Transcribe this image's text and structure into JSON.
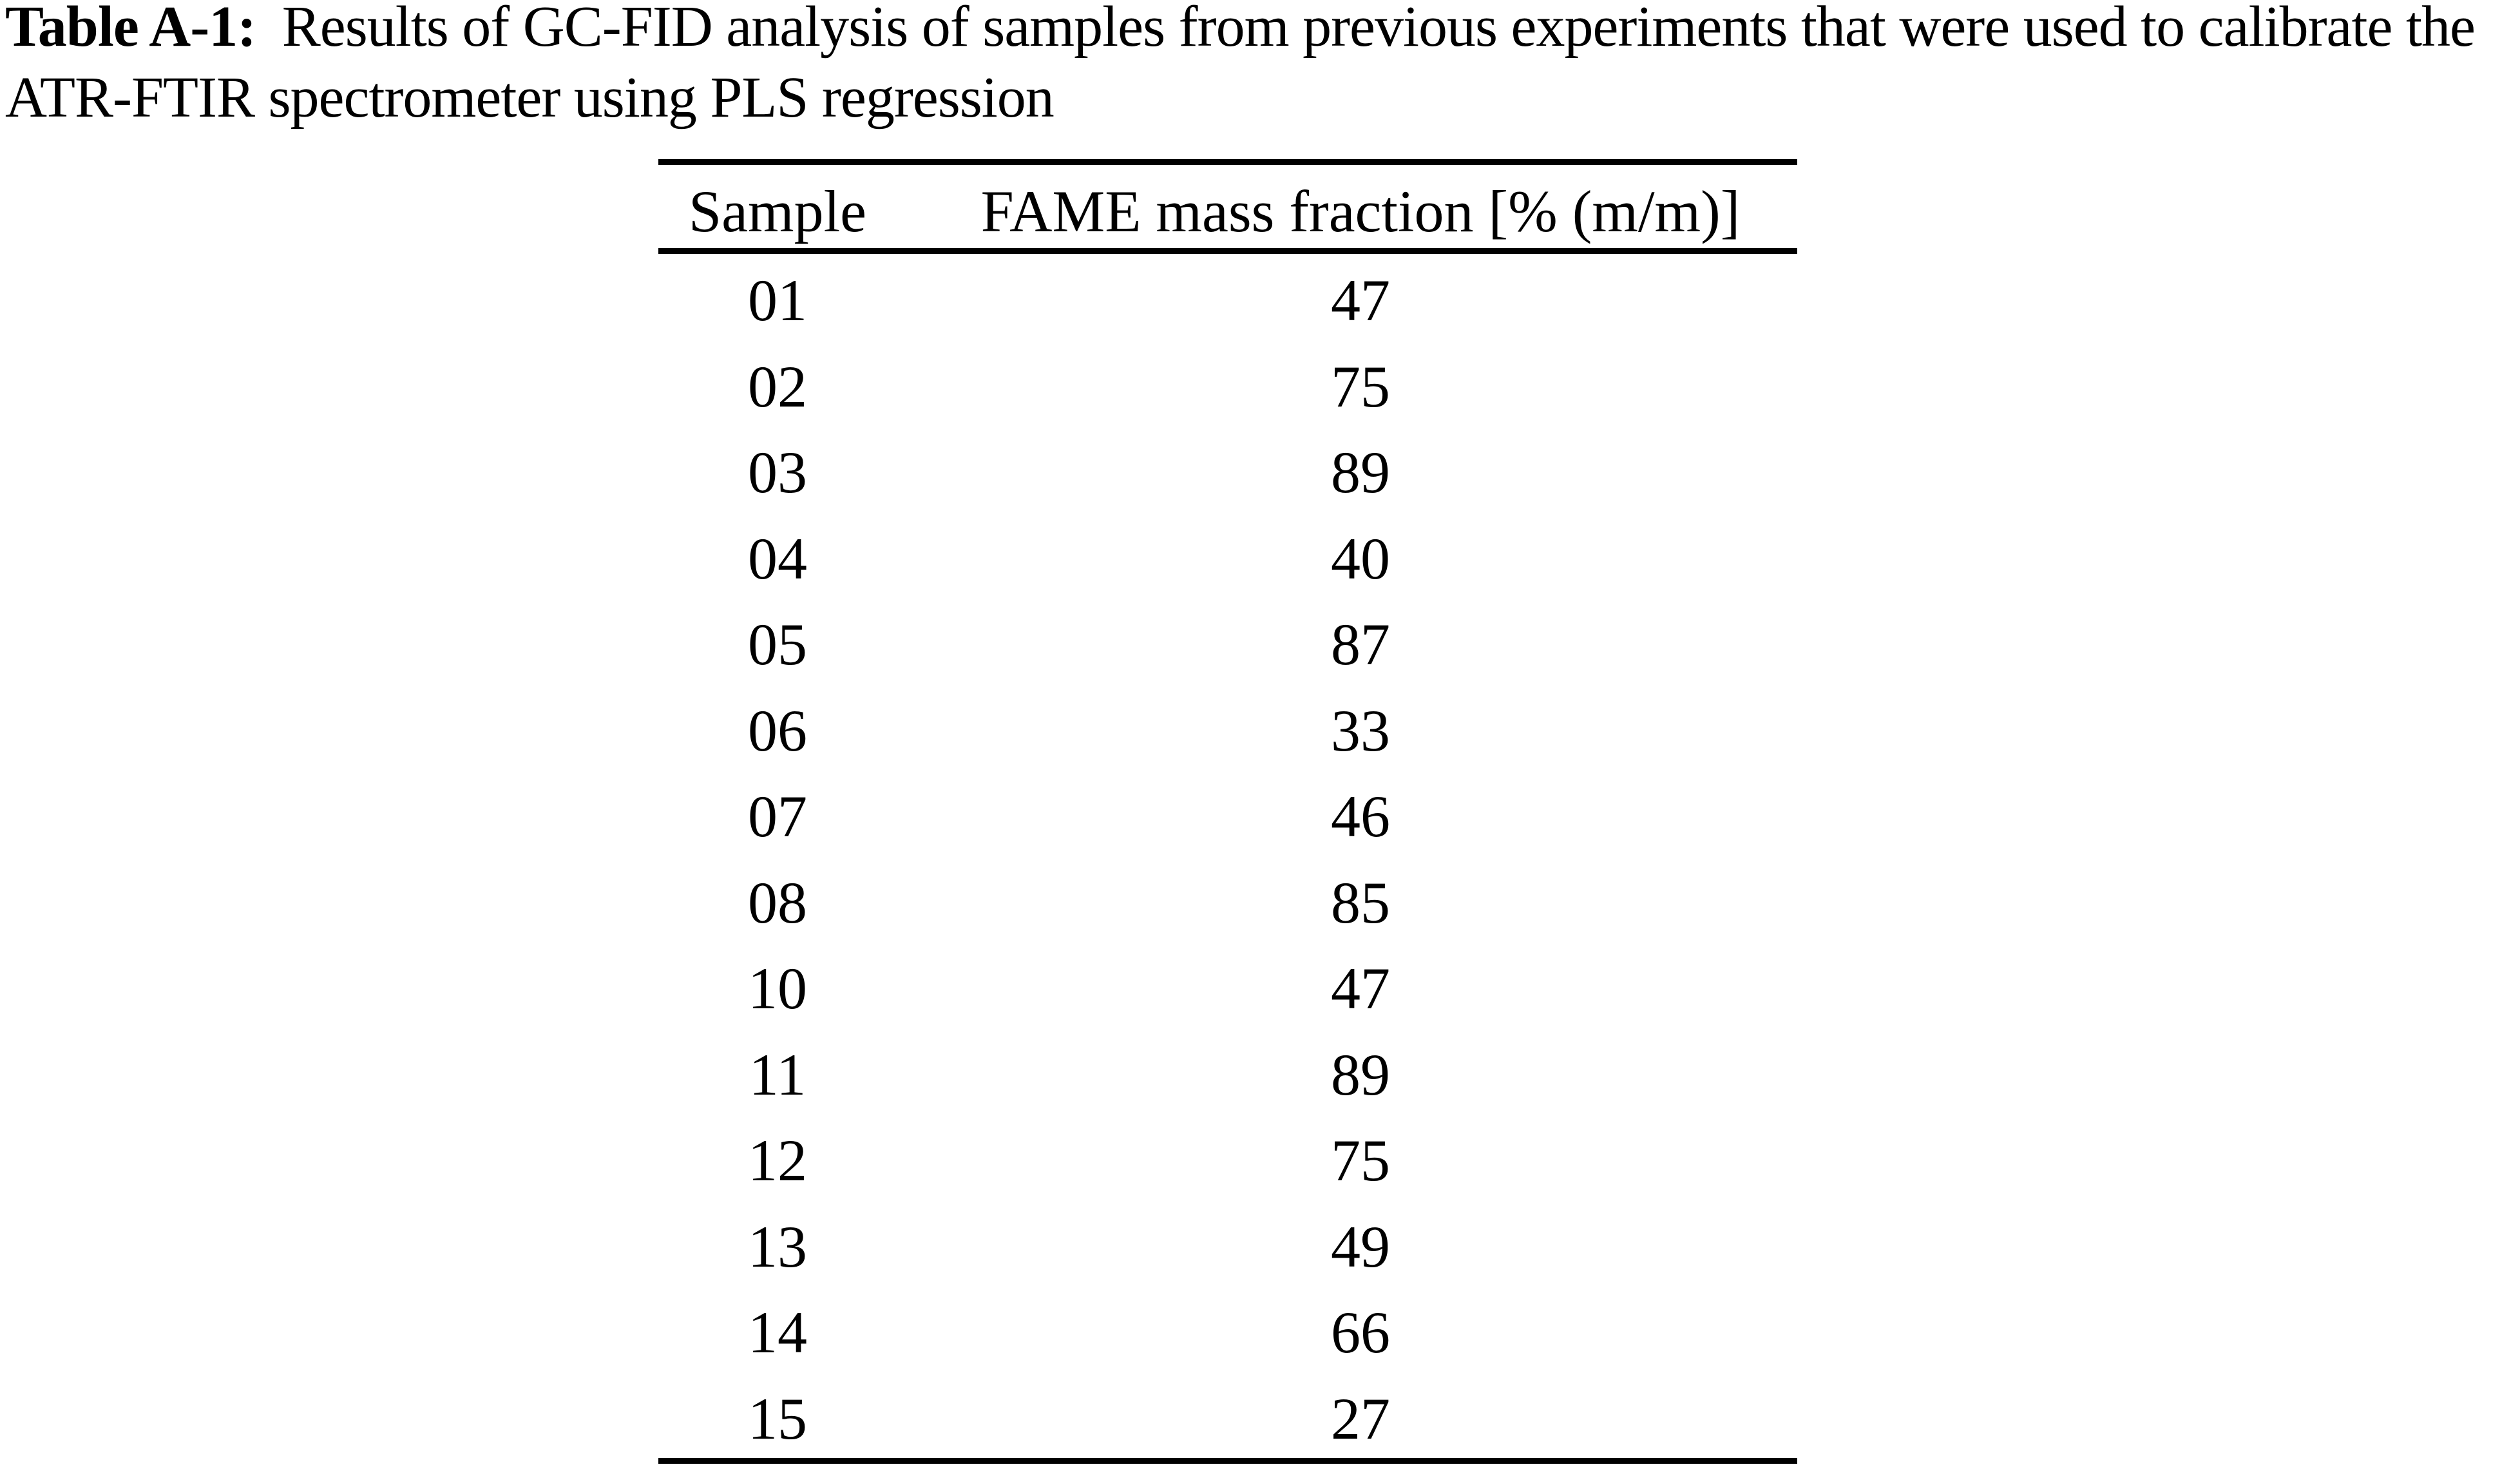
{
  "title": {
    "label": "Table A-1:",
    "line1": "Results of GC-FID analysis of samples from previous experiments that were used to calibrate the",
    "line2": "ATR-FTIR spectrometer using PLS regression"
  },
  "table": {
    "columns": [
      "Sample",
      "FAME mass fraction [% (m/m)]"
    ],
    "rows": [
      {
        "sample": "01",
        "value": "47"
      },
      {
        "sample": "02",
        "value": "75"
      },
      {
        "sample": "03",
        "value": "89"
      },
      {
        "sample": "04",
        "value": "40"
      },
      {
        "sample": "05",
        "value": "87"
      },
      {
        "sample": "06",
        "value": "33"
      },
      {
        "sample": "07",
        "value": "46"
      },
      {
        "sample": "08",
        "value": "85"
      },
      {
        "sample": "10",
        "value": "47"
      },
      {
        "sample": "11",
        "value": "89"
      },
      {
        "sample": "12",
        "value": "75"
      },
      {
        "sample": "13",
        "value": "49"
      },
      {
        "sample": "14",
        "value": "66"
      },
      {
        "sample": "15",
        "value": "27"
      }
    ]
  }
}
